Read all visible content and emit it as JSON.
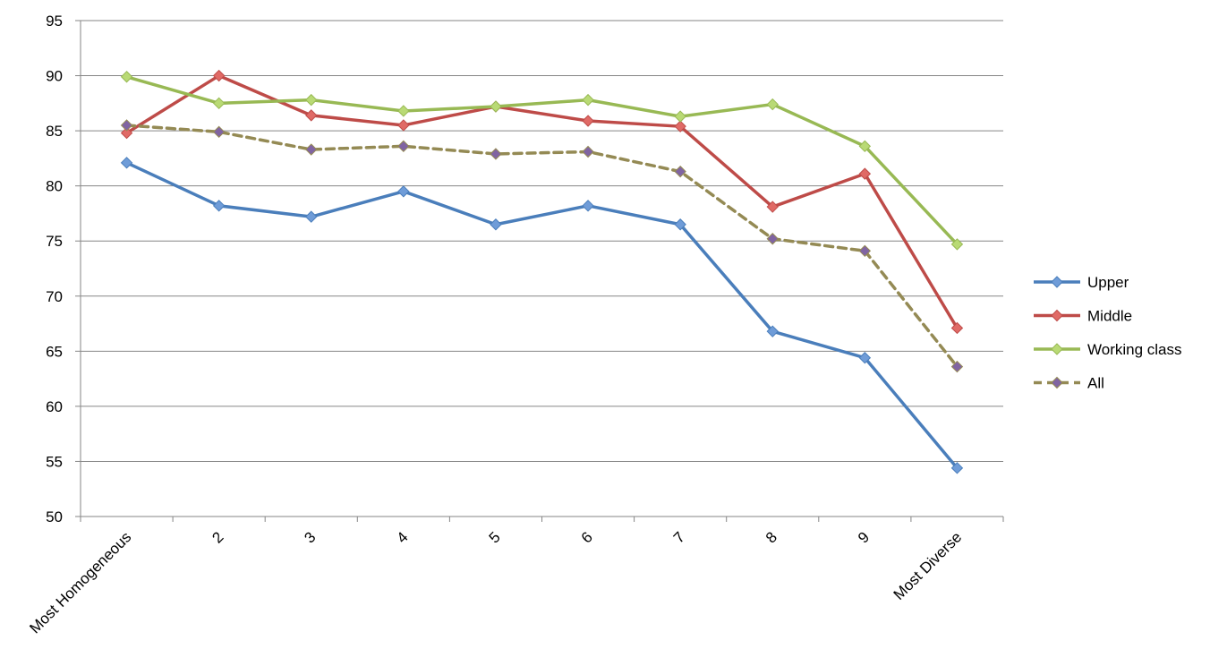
{
  "chart_data": {
    "type": "line",
    "title": "",
    "xlabel": "",
    "ylabel": "",
    "categories": [
      "Most Homogeneous",
      "2",
      "3",
      "4",
      "5",
      "6",
      "7",
      "8",
      "9",
      "Most Diverse"
    ],
    "ylim": [
      50,
      95
    ],
    "yticks": [
      50,
      55,
      60,
      65,
      70,
      75,
      80,
      85,
      90,
      95
    ],
    "grid": true,
    "legend_position": "right",
    "series": [
      {
        "name": "Upper",
        "color": "#4A7EBB",
        "marker_color": "#6F9CD8",
        "dash": false,
        "values": [
          82.1,
          78.2,
          77.2,
          79.5,
          76.5,
          78.2,
          76.5,
          66.8,
          64.4,
          54.4
        ]
      },
      {
        "name": "Middle",
        "color": "#BE4B48",
        "marker_color": "#E06A66",
        "dash": false,
        "values": [
          84.8,
          90.0,
          86.4,
          85.5,
          87.2,
          85.9,
          85.4,
          78.1,
          81.1,
          67.1
        ]
      },
      {
        "name": "Working class",
        "color": "#98B954",
        "marker_color": "#B9DA75",
        "dash": false,
        "values": [
          89.9,
          87.5,
          87.8,
          86.8,
          87.2,
          87.8,
          86.3,
          87.4,
          83.6,
          74.7
        ]
      },
      {
        "name": "All",
        "color": "#948A54",
        "marker_color": "#8064A2",
        "dash": true,
        "values": [
          85.5,
          84.9,
          83.3,
          83.6,
          82.9,
          83.1,
          81.3,
          75.2,
          74.1,
          63.6
        ]
      }
    ]
  }
}
